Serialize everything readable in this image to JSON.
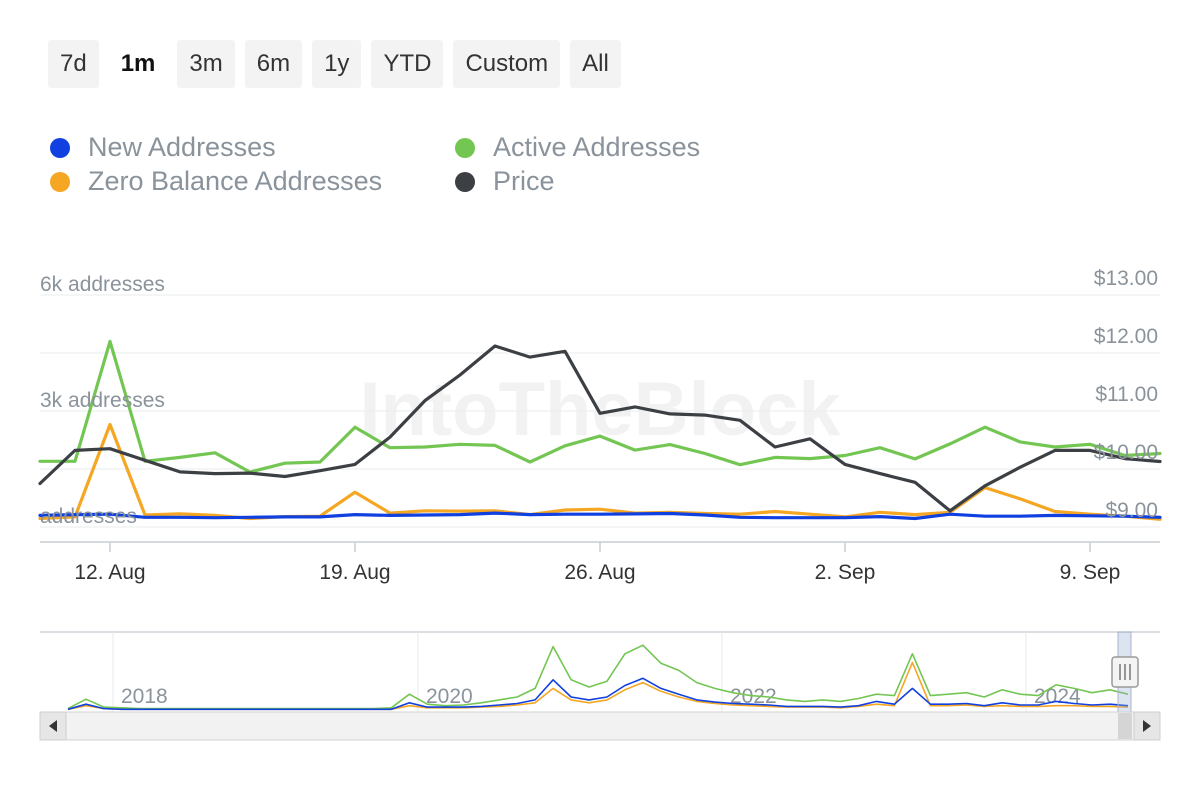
{
  "range_selector": {
    "buttons": [
      "7d",
      "1m",
      "3m",
      "6m",
      "1y",
      "YTD",
      "Custom",
      "All"
    ],
    "selected": "1m"
  },
  "legend": {
    "items": [
      {
        "label": "New Addresses",
        "color": "#1040e0"
      },
      {
        "label": "Active Addresses",
        "color": "#74c653"
      },
      {
        "label": "Zero Balance Addresses",
        "color": "#f5a623"
      },
      {
        "label": "Price",
        "color": "#3c4045"
      }
    ]
  },
  "watermark": "IntoTheBlock",
  "chart_data": {
    "type": "line",
    "x": [
      "10 Aug",
      "11 Aug",
      "12 Aug",
      "13 Aug",
      "14 Aug",
      "15 Aug",
      "16 Aug",
      "17 Aug",
      "18 Aug",
      "19 Aug",
      "20 Aug",
      "21 Aug",
      "22 Aug",
      "23 Aug",
      "24 Aug",
      "25 Aug",
      "26 Aug",
      "27 Aug",
      "28 Aug",
      "29 Aug",
      "30 Aug",
      "31 Aug",
      "1 Sep",
      "2 Sep",
      "3 Sep",
      "4 Sep",
      "5 Sep",
      "6 Sep",
      "7 Sep",
      "8 Sep",
      "9 Sep",
      "10 Sep",
      "11 Sep"
    ],
    "x_ticks": [
      {
        "label": "12. Aug",
        "x": "12 Aug"
      },
      {
        "label": "19. Aug",
        "x": "19 Aug"
      },
      {
        "label": "26. Aug",
        "x": "26 Aug"
      },
      {
        "label": "2. Sep",
        "x": "2 Sep"
      },
      {
        "label": "9. Sep",
        "x": "9 Sep"
      }
    ],
    "y_left": {
      "ticks": [
        {
          "value": 0,
          "label": "addresses"
        },
        {
          "value": 3000,
          "label": "3k addresses"
        },
        {
          "value": 6000,
          "label": "6k addresses"
        }
      ],
      "ylim": [
        0,
        6000
      ]
    },
    "y_right": {
      "ticks": [
        {
          "value": 9,
          "label": "$9.00"
        },
        {
          "value": 10,
          "label": "$10.00"
        },
        {
          "value": 11,
          "label": "$11.00"
        },
        {
          "value": 12,
          "label": "$12.00"
        },
        {
          "value": 13,
          "label": "$13.00"
        }
      ],
      "ylim": [
        9,
        13
      ]
    },
    "series": [
      {
        "name": "Active Addresses",
        "axis": "left",
        "color": "#74c653",
        "values": [
          1700,
          1700,
          4800,
          1700,
          1800,
          1920,
          1420,
          1650,
          1680,
          2580,
          2050,
          2070,
          2140,
          2110,
          1680,
          2100,
          2350,
          1990,
          2130,
          1900,
          1610,
          1800,
          1770,
          1850,
          2050,
          1760,
          2150,
          2580,
          2200,
          2070,
          2140,
          1850,
          1900
        ]
      },
      {
        "name": "Zero Balance Addresses",
        "axis": "left",
        "color": "#f5a623",
        "values": [
          220,
          260,
          2650,
          310,
          340,
          300,
          220,
          270,
          280,
          900,
          360,
          420,
          410,
          420,
          320,
          440,
          460,
          360,
          380,
          350,
          330,
          400,
          330,
          260,
          380,
          320,
          380,
          1020,
          730,
          400,
          330,
          280,
          200
        ]
      },
      {
        "name": "New Addresses",
        "axis": "left",
        "color": "#1040e0",
        "values": [
          300,
          320,
          330,
          250,
          250,
          240,
          250,
          260,
          260,
          320,
          300,
          310,
          320,
          360,
          320,
          330,
          330,
          340,
          350,
          310,
          250,
          240,
          240,
          240,
          270,
          220,
          330,
          280,
          280,
          300,
          290,
          280,
          250
        ]
      },
      {
        "name": "Price",
        "axis": "right",
        "color": "#3c4045",
        "values": [
          9.75,
          10.32,
          10.35,
          10.15,
          9.95,
          9.92,
          9.93,
          9.87,
          9.97,
          10.08,
          10.55,
          11.18,
          11.62,
          12.12,
          11.93,
          12.03,
          10.96,
          11.07,
          10.95,
          10.93,
          10.84,
          10.38,
          10.52,
          10.08,
          9.92,
          9.77,
          9.28,
          9.71,
          10.03,
          10.32,
          10.32,
          10.18,
          10.13
        ]
      }
    ],
    "navigator": {
      "year_labels": [
        "2018",
        "2020",
        "2022",
        "2024"
      ],
      "series": [
        {
          "name": "Active Addresses",
          "color": "#74c653",
          "values": [
            0.02,
            0.15,
            0.04,
            0.03,
            0.02,
            0.02,
            0.02,
            0.02,
            0.02,
            0.02,
            0.02,
            0.02,
            0.02,
            0.02,
            0.02,
            0.02,
            0.02,
            0.02,
            0.03,
            0.22,
            0.08,
            0.06,
            0.07,
            0.1,
            0.14,
            0.18,
            0.3,
            0.88,
            0.42,
            0.32,
            0.4,
            0.78,
            0.9,
            0.65,
            0.55,
            0.38,
            0.3,
            0.24,
            0.2,
            0.18,
            0.14,
            0.12,
            0.14,
            0.12,
            0.16,
            0.22,
            0.2,
            0.78,
            0.2,
            0.22,
            0.24,
            0.18,
            0.28,
            0.22,
            0.2,
            0.35,
            0.3,
            0.24,
            0.28,
            0.22
          ]
        },
        {
          "name": "Zero Balance Addresses",
          "color": "#f5a623",
          "values": [
            0.01,
            0.06,
            0.02,
            0.01,
            0.01,
            0.01,
            0.01,
            0.01,
            0.01,
            0.01,
            0.01,
            0.01,
            0.01,
            0.01,
            0.01,
            0.01,
            0.01,
            0.01,
            0.01,
            0.06,
            0.03,
            0.03,
            0.03,
            0.04,
            0.05,
            0.07,
            0.1,
            0.3,
            0.14,
            0.1,
            0.14,
            0.28,
            0.38,
            0.26,
            0.18,
            0.12,
            0.09,
            0.07,
            0.06,
            0.05,
            0.04,
            0.04,
            0.04,
            0.03,
            0.05,
            0.08,
            0.06,
            0.66,
            0.06,
            0.06,
            0.07,
            0.05,
            0.06,
            0.05,
            0.05,
            0.06,
            0.06,
            0.05,
            0.05,
            0.04
          ]
        },
        {
          "name": "New Addresses",
          "color": "#1040e0",
          "values": [
            0.01,
            0.08,
            0.02,
            0.01,
            0.01,
            0.01,
            0.01,
            0.01,
            0.01,
            0.01,
            0.01,
            0.01,
            0.01,
            0.01,
            0.01,
            0.01,
            0.01,
            0.01,
            0.01,
            0.1,
            0.04,
            0.04,
            0.04,
            0.05,
            0.07,
            0.09,
            0.14,
            0.42,
            0.18,
            0.14,
            0.18,
            0.34,
            0.44,
            0.3,
            0.22,
            0.14,
            0.11,
            0.09,
            0.08,
            0.07,
            0.05,
            0.05,
            0.05,
            0.04,
            0.06,
            0.12,
            0.08,
            0.3,
            0.08,
            0.08,
            0.09,
            0.06,
            0.1,
            0.07,
            0.07,
            0.12,
            0.09,
            0.07,
            0.08,
            0.06
          ]
        }
      ]
    }
  }
}
